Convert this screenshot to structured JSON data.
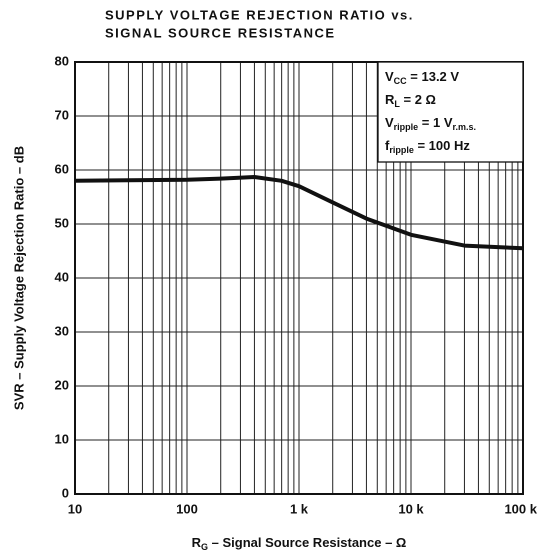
{
  "chart_data": {
    "type": "line",
    "title": [
      "SUPPLY VOLTAGE REJECTION RATIO vs.",
      "SIGNAL SOURCE RESISTANCE"
    ],
    "y_label": "SVR – Supply Voltage Rejection Ratio – dB",
    "x_label": {
      "main": "R",
      "sub": "G",
      "rest": " – Signal Source Resistance – Ω"
    },
    "annotations": [
      {
        "main": "V",
        "sub": "CC",
        "rest": " = 13.2 V"
      },
      {
        "main": "R",
        "sub": "L",
        "rest": " = 2 Ω"
      },
      {
        "main": "V",
        "sub": "ripple",
        "rest": " = 1 V",
        "sub2": "r.m.s."
      },
      {
        "main": "f",
        "sub": "ripple",
        "rest": " = 100 Hz"
      }
    ],
    "x": [
      10,
      30,
      100,
      200,
      400,
      700,
      1000,
      2000,
      4000,
      10000,
      30000,
      100000
    ],
    "series": [
      {
        "name": "SVR",
        "color": "#111111",
        "values": [
          58,
          58.1,
          58.2,
          58.4,
          58.7,
          58,
          57,
          54,
          51,
          48,
          46,
          45.5
        ]
      }
    ],
    "xscale": "log",
    "xlim": [
      10,
      100000
    ],
    "xticks": [
      10,
      100,
      {
        "value": 1000,
        "label": "1 k"
      },
      {
        "value": 10000,
        "label": "10 k"
      },
      {
        "value": 100000,
        "label": "100 k"
      }
    ],
    "xminor": [
      20,
      30,
      40,
      50,
      60,
      70,
      80,
      90,
      200,
      300,
      400,
      500,
      600,
      700,
      800,
      900,
      2000,
      3000,
      4000,
      5000,
      6000,
      7000,
      8000,
      9000,
      20000,
      30000,
      40000,
      50000,
      60000,
      70000,
      80000,
      90000
    ],
    "ylim": [
      0,
      80
    ],
    "yticks": [
      0,
      10,
      20,
      30,
      40,
      50,
      60,
      70,
      80
    ],
    "grid": true
  }
}
